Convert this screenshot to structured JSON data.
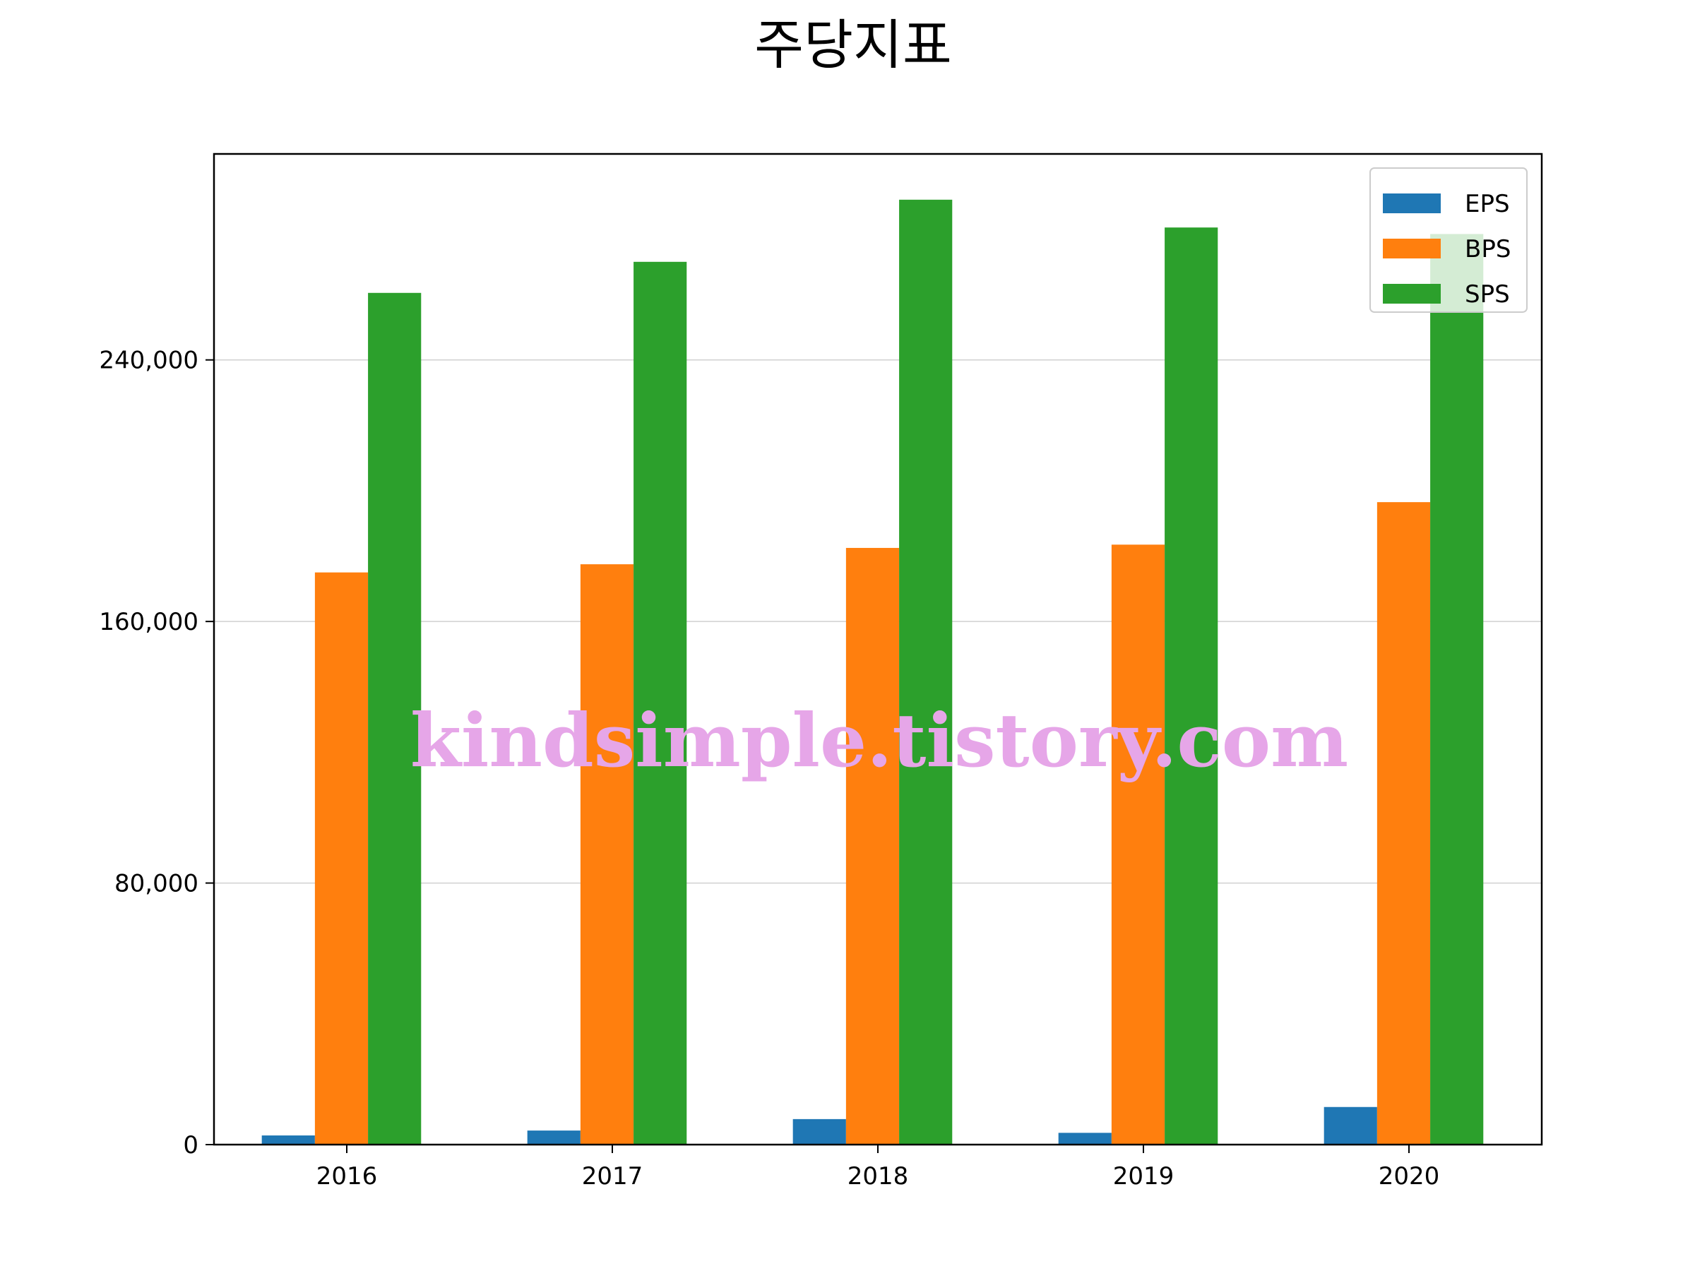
{
  "chart_data": {
    "type": "bar",
    "title": "주당지표",
    "xlabel": "",
    "ylabel": "",
    "categories": [
      "2016",
      "2017",
      "2018",
      "2019",
      "2020"
    ],
    "series": [
      {
        "name": "EPS",
        "color": "#1f77b4",
        "values": [
          2800,
          4300,
          7800,
          3600,
          11500
        ]
      },
      {
        "name": "BPS",
        "color": "#ff7f0e",
        "values": [
          175000,
          177500,
          182500,
          183500,
          196500
        ]
      },
      {
        "name": "SPS",
        "color": "#2ca02c",
        "values": [
          260500,
          270000,
          289000,
          280500,
          278500
        ]
      }
    ],
    "ylim": [
      0,
      303000
    ],
    "yticks": [
      0,
      80000,
      160000,
      240000
    ],
    "ytick_labels": [
      "0",
      "80,000",
      "160,000",
      "240,000"
    ],
    "grid": "y",
    "legend_position": "top-right",
    "watermark": "kindsimple.tistory.com"
  }
}
